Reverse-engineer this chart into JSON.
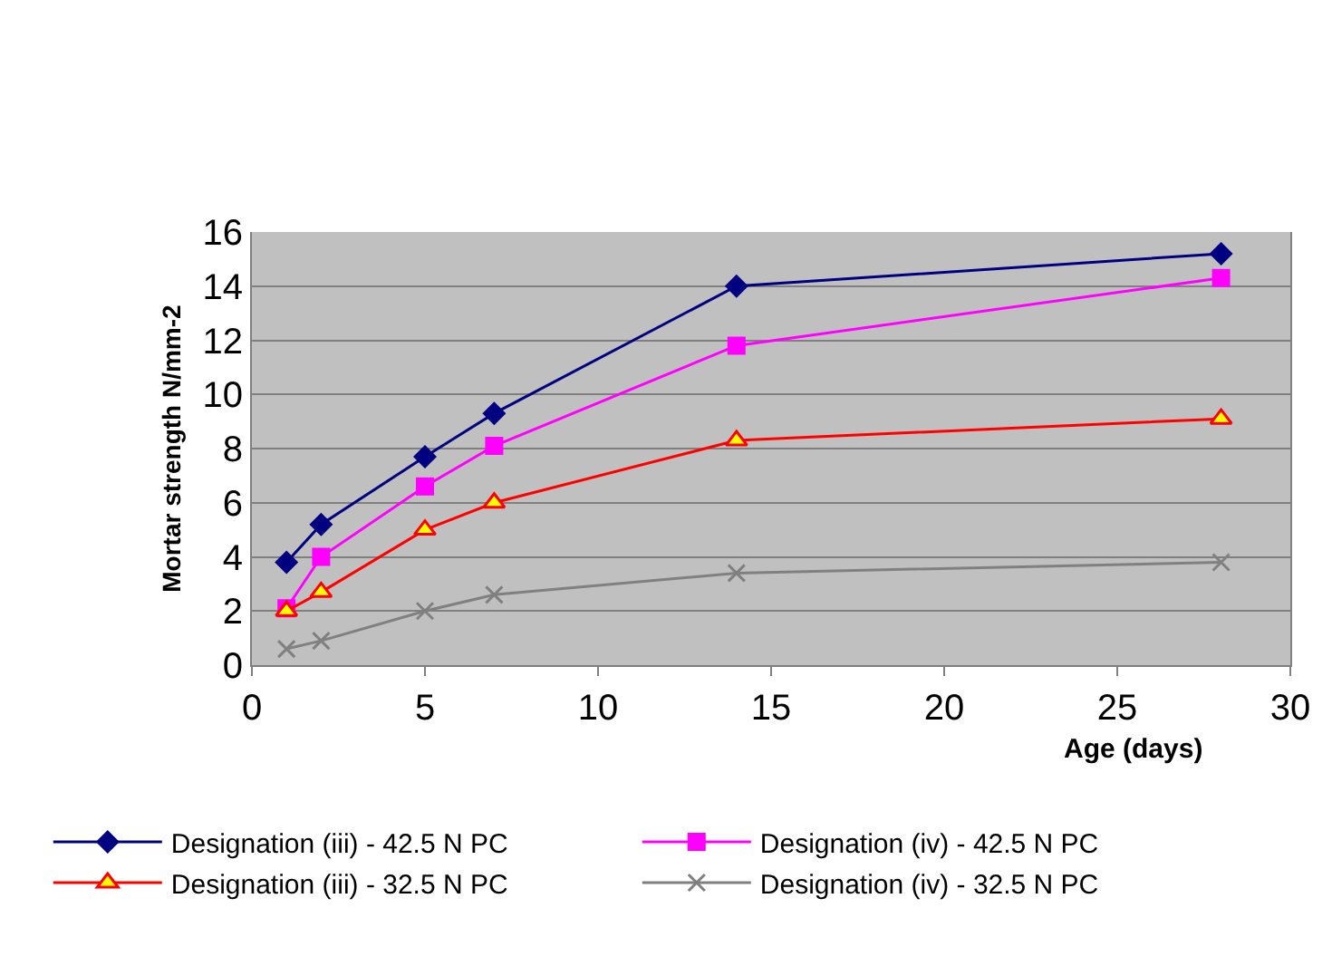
{
  "chart_data": {
    "type": "line",
    "xlabel": "Age (days)",
    "ylabel": "Mortar strength N/mm-2",
    "x": [
      1,
      2,
      5,
      7,
      14,
      28
    ],
    "series": [
      {
        "name": "Designation (iii) - 42.5 N PC",
        "color": "#000080",
        "marker": "diamond",
        "values": [
          3.8,
          5.2,
          7.7,
          9.3,
          14.0,
          15.2
        ]
      },
      {
        "name": "Designation (iv) - 42.5 N PC",
        "color": "#ff00ff",
        "marker": "square",
        "values": [
          2.1,
          4.0,
          6.6,
          8.1,
          11.8,
          14.3
        ]
      },
      {
        "name": "Designation (iii) - 32.5 N PC",
        "color": "#ff0000",
        "marker": "triangle",
        "values": [
          2.0,
          2.7,
          5.0,
          6.0,
          8.3,
          9.1
        ]
      },
      {
        "name": "Designation (iv) - 32.5 N PC",
        "color": "#808080",
        "marker": "cross",
        "values": [
          0.6,
          0.9,
          2.0,
          2.6,
          3.4,
          3.8
        ]
      }
    ],
    "xlim": [
      0,
      30
    ],
    "xticks": [
      0,
      5,
      10,
      15,
      20,
      25,
      30
    ],
    "ylim": [
      0,
      16
    ],
    "yticks": [
      0,
      2,
      4,
      6,
      8,
      10,
      12,
      14,
      16
    ],
    "grid": "y",
    "legend": "bottom",
    "line_style": "solid"
  }
}
